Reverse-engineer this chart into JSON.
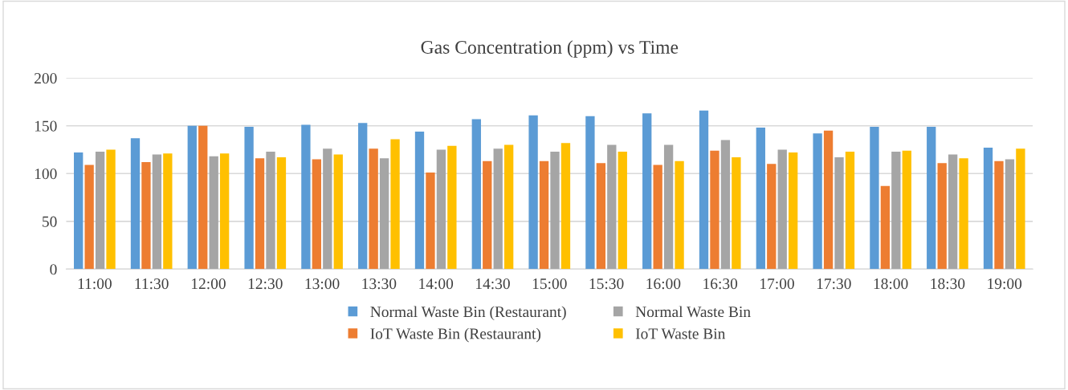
{
  "chart_data": {
    "type": "bar",
    "title": "Gas Concentration (ppm) vs Time",
    "categories": [
      "11:00",
      "11:30",
      "12:00",
      "12:30",
      "13:00",
      "13:30",
      "14:00",
      "14:30",
      "15:00",
      "15:30",
      "16:00",
      "16:30",
      "17:00",
      "17:30",
      "18:00",
      "18:30",
      "19:00"
    ],
    "series": [
      {
        "name": "Normal Waste Bin (Restaurant)",
        "color": "#5b9bd5",
        "values": [
          122,
          137,
          150,
          149,
          151,
          153,
          144,
          157,
          161,
          160,
          163,
          166,
          148,
          142,
          149,
          149,
          127
        ]
      },
      {
        "name": "IoT Waste Bin (Restaurant)",
        "color": "#ed7d31",
        "values": [
          109,
          112,
          150,
          116,
          115,
          126,
          101,
          113,
          113,
          111,
          109,
          124,
          110,
          145,
          87,
          111,
          113
        ]
      },
      {
        "name": "Normal Waste Bin",
        "color": "#a5a5a5",
        "values": [
          123,
          120,
          118,
          123,
          126,
          116,
          125,
          126,
          123,
          130,
          130,
          135,
          125,
          117,
          123,
          120,
          115
        ]
      },
      {
        "name": "IoT Waste Bin",
        "color": "#ffc000",
        "values": [
          125,
          121,
          121,
          117,
          120,
          136,
          129,
          130,
          132,
          123,
          113,
          117,
          122,
          123,
          124,
          116,
          126
        ]
      }
    ],
    "ylim": [
      0,
      200
    ],
    "yticks": [
      0,
      50,
      100,
      150,
      200
    ],
    "grid": "y",
    "legend": "bottom"
  }
}
